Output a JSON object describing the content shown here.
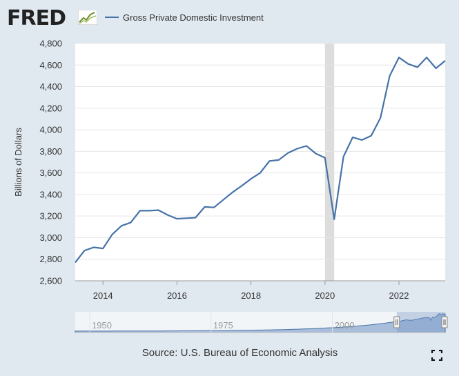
{
  "header": {
    "logo_text": "FRED",
    "series_name": "Gross Private Domestic Investment",
    "series_color": "#4572a7"
  },
  "footer": {
    "source": "Source: U.S. Bureau of Economic Analysis"
  },
  "icons": {
    "fullscreen": "fullscreen-icon",
    "logo": "fred-logo-graph-icon"
  },
  "recession": {
    "start": 2020.0,
    "end": 2020.25,
    "color": "#dddddd"
  },
  "navigator": {
    "tick_labels": [
      "1950",
      "1975",
      "2000"
    ],
    "range_start": 2013.25,
    "range_end": 2023.25
  },
  "chart_data": {
    "type": "line",
    "title": "",
    "xlabel": "",
    "ylabel": "Billions of Dollars",
    "xlim": [
      2013.25,
      2023.25
    ],
    "ylim": [
      2600,
      4800
    ],
    "y_ticks": [
      2600,
      2800,
      3000,
      3200,
      3400,
      3600,
      3800,
      4000,
      4200,
      4400,
      4600,
      4800
    ],
    "y_tick_labels": [
      "2,600",
      "2,800",
      "3,000",
      "3,200",
      "3,400",
      "3,600",
      "3,800",
      "4,000",
      "4,200",
      "4,400",
      "4,600",
      "4,800"
    ],
    "x_ticks": [
      2014,
      2016,
      2018,
      2020,
      2022
    ],
    "x_tick_labels": [
      "2014",
      "2016",
      "2018",
      "2020",
      "2022"
    ],
    "grid": true,
    "series": [
      {
        "name": "Gross Private Domestic Investment",
        "color": "#4572a7",
        "x": [
          2013.25,
          2013.5,
          2013.75,
          2014.0,
          2014.25,
          2014.5,
          2014.75,
          2015.0,
          2015.25,
          2015.5,
          2015.75,
          2016.0,
          2016.25,
          2016.5,
          2016.75,
          2017.0,
          2017.25,
          2017.5,
          2017.75,
          2018.0,
          2018.25,
          2018.5,
          2018.75,
          2019.0,
          2019.25,
          2019.5,
          2019.75,
          2020.0,
          2020.25,
          2020.5,
          2020.75,
          2021.0,
          2021.25,
          2021.5,
          2021.75,
          2022.0,
          2022.25,
          2022.5,
          2022.75,
          2023.0,
          2023.25
        ],
        "values": [
          2770,
          2880,
          2910,
          2900,
          3030,
          3110,
          3140,
          3250,
          3250,
          3255,
          3210,
          3175,
          3180,
          3185,
          3285,
          3280,
          3350,
          3420,
          3480,
          3545,
          3600,
          3710,
          3720,
          3785,
          3825,
          3850,
          3780,
          3740,
          3170,
          3750,
          3930,
          3905,
          3945,
          4110,
          4500,
          4670,
          4610,
          4580,
          4670,
          4570,
          4640
        ]
      }
    ]
  }
}
